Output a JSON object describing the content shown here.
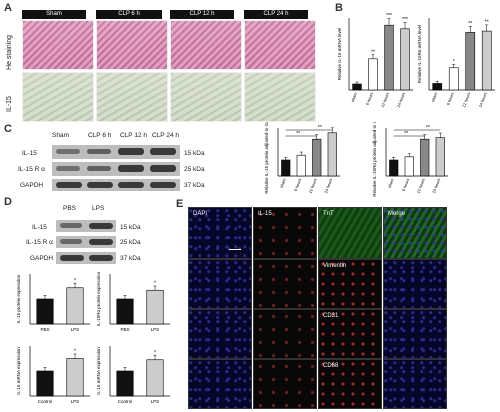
{
  "panels": {
    "a": "A",
    "b": "B",
    "c": "C",
    "d": "D",
    "e": "E"
  },
  "panelA": {
    "headers": [
      "Sham",
      "CLP 6 h",
      "CLP 12 h",
      "CLP 24 h"
    ],
    "rows": [
      "He staining",
      "IL-15"
    ]
  },
  "panelB": {
    "chart_data": [
      {
        "type": "bar",
        "ylabel": "Relative IL-15 mRNA level",
        "categories": [
          "sham",
          "6 hours",
          "12 hours",
          "24 hours"
        ],
        "values": [
          0.5,
          2.6,
          5.4,
          5.1
        ],
        "ylim": [
          0,
          6
        ],
        "sig": [
          "",
          "**",
          "***",
          "***"
        ]
      },
      {
        "type": "bar",
        "ylabel": "Relative IL-15Rα mRNA level",
        "categories": [
          "sham",
          "6 hours",
          "12 hours",
          "24 hours"
        ],
        "values": [
          0.5,
          1.7,
          4.4,
          4.5
        ],
        "ylim": [
          0,
          5.5
        ],
        "sig": [
          "",
          "*",
          "**",
          "**"
        ]
      }
    ]
  },
  "panelC": {
    "headers": [
      "Sham",
      "CLP 6 h",
      "CLP 12 h",
      "CLP 24 h"
    ],
    "proteins": [
      "IL-15",
      "IL-15 R α",
      "GAPDH"
    ],
    "sizes": [
      "15 kDa",
      "25 kDa",
      "37 kDa"
    ],
    "chart_data": [
      {
        "type": "bar",
        "ylabel": "Relative IL-15 protein adjusted to GAPDH",
        "categories": [
          "sham",
          "6 hours",
          "12 hours",
          "24 hours"
        ],
        "values": [
          1.0,
          1.3,
          2.3,
          2.7
        ],
        "ylim": [
          0,
          3
        ],
        "sig": [
          "**",
          "**"
        ]
      },
      {
        "type": "bar",
        "ylabel": "Relative IL-15Rα protein adjusted to GAPDH",
        "categories": [
          "sham",
          "6 hours",
          "12 hours",
          "24 hours"
        ],
        "values": [
          1.0,
          1.2,
          2.3,
          2.4
        ],
        "ylim": [
          0,
          3
        ],
        "sig": [
          "**",
          "**"
        ]
      }
    ]
  },
  "panelD": {
    "headers": [
      "PBS",
      "LPS"
    ],
    "proteins": [
      "IL-15",
      "IL-15 R α",
      "GAPDH"
    ],
    "sizes": [
      "15 kDa",
      "25 kDa",
      "37 kDa"
    ],
    "chart_data": [
      {
        "type": "bar",
        "ylabel": "IL-15 protein expression",
        "categories": [
          "PBS",
          "LPS"
        ],
        "values": [
          1.0,
          1.45
        ],
        "ylim": [
          0,
          2
        ],
        "sig": [
          "",
          "*"
        ]
      },
      {
        "type": "bar",
        "ylabel": "IL-15Rα protein expression",
        "categories": [
          "PBS",
          "LPS"
        ],
        "values": [
          1.0,
          1.35
        ],
        "ylim": [
          0,
          2
        ],
        "sig": [
          "",
          "*"
        ]
      },
      {
        "type": "bar",
        "ylabel": "IL-15 mRNA expression",
        "categories": [
          "Control",
          "LPS"
        ],
        "values": [
          1.0,
          1.5
        ],
        "ylim": [
          0,
          2
        ],
        "sig": [
          "",
          "*"
        ]
      },
      {
        "type": "bar",
        "ylabel": "IL-15 mRNA expression",
        "categories": [
          "Control",
          "LPS"
        ],
        "values": [
          1.0,
          1.45
        ],
        "ylim": [
          0,
          2
        ],
        "sig": [
          "",
          "*"
        ]
      }
    ]
  },
  "panelE": {
    "columns": [
      "DAPI",
      "IL-15",
      "TnT",
      "Merge"
    ],
    "rowLabels": [
      "TnT",
      "Vimentin",
      "CD31",
      "CD68"
    ]
  },
  "colors": {
    "bar_dark": "#111111",
    "bar_mid": "#888888",
    "bar_light": "#cccccc",
    "bar_white": "#ffffff"
  }
}
